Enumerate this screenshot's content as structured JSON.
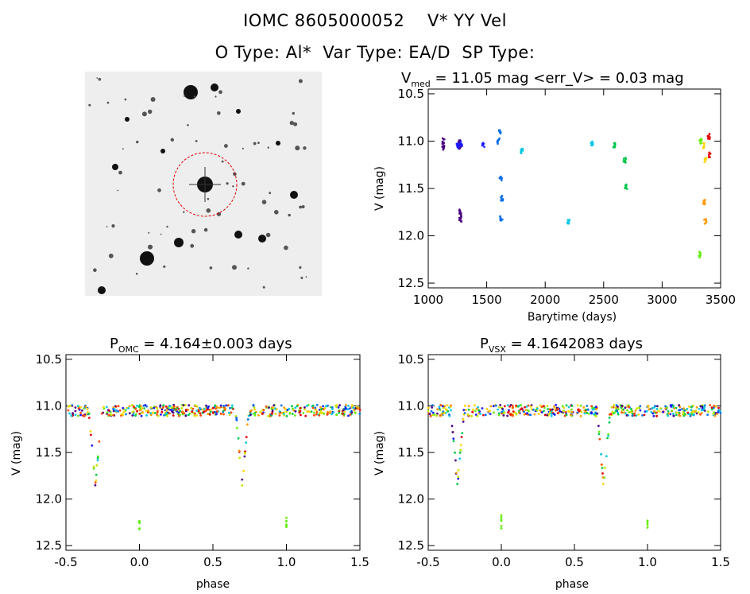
{
  "header": {
    "title": "IOMC 8605000052    V* YY Vel",
    "subtitle": "O Type: Al*  Var Type: EA/D  SP Type:"
  },
  "colors": {
    "series": [
      "#4b0082",
      "#1a1aff",
      "#0a6fe8",
      "#00c8e6",
      "#00c84a",
      "#66ee11",
      "#c8e600",
      "#ffd400",
      "#ff9a00",
      "#ff4a00",
      "#e60000",
      "#202020"
    ],
    "frame": "#000000"
  },
  "chart_data": [
    {
      "type": "scatter",
      "name": "light-curve",
      "title_main": "V",
      "title_sub": "med",
      "title_rest": " = 11.05 mag <err_V> = 0.03 mag",
      "xlabel": "Barytime (days)",
      "ylabel": "V (mag)",
      "xlim": [
        1000,
        3500
      ],
      "ylim": [
        12.55,
        10.45
      ],
      "xticks": [
        "1000",
        "1500",
        "2000",
        "2500",
        "3000",
        "3500"
      ],
      "yticks": [
        "10.5",
        "11.0",
        "11.5",
        "12.0",
        "12.5"
      ],
      "series": [
        {
          "name": "s1",
          "color_index": 0,
          "points": [
            [
              1130,
              11.0
            ],
            [
              1130,
              11.07
            ],
            [
              1270,
              11.02
            ],
            [
              1270,
              11.06
            ],
            [
              1275,
              11.75
            ],
            [
              1275,
              11.82
            ]
          ]
        },
        {
          "name": "s2",
          "color_index": 1,
          "points": [
            [
              1250,
              11.05
            ],
            [
              1280,
              11.03
            ],
            [
              1470,
              11.04
            ]
          ]
        },
        {
          "name": "s3",
          "color_index": 2,
          "points": [
            [
              1600,
              11.0
            ],
            [
              1610,
              10.9
            ],
            [
              1620,
              11.4
            ],
            [
              1625,
              11.82
            ],
            [
              1630,
              11.6
            ]
          ]
        },
        {
          "name": "s4",
          "color_index": 3,
          "points": [
            [
              1800,
              11.1
            ],
            [
              2200,
              11.85
            ],
            [
              2400,
              11.02
            ]
          ]
        },
        {
          "name": "s5",
          "color_index": 4,
          "points": [
            [
              2590,
              11.04
            ],
            [
              2680,
              11.2
            ],
            [
              2690,
              11.48
            ]
          ]
        },
        {
          "name": "s6",
          "color_index": 5,
          "points": [
            [
              3320,
              12.2
            ],
            [
              3330,
              11.0
            ]
          ]
        },
        {
          "name": "s7",
          "color_index": 7,
          "points": [
            [
              3360,
              11.05
            ],
            [
              3370,
              11.2
            ]
          ]
        },
        {
          "name": "s8",
          "color_index": 8,
          "points": [
            [
              3360,
              11.65
            ],
            [
              3370,
              11.85
            ]
          ]
        },
        {
          "name": "s9",
          "color_index": 10,
          "points": [
            [
              3400,
              10.95
            ],
            [
              3405,
              11.15
            ]
          ]
        }
      ]
    },
    {
      "type": "scatter",
      "name": "phase-omc",
      "title_main": "P",
      "title_sub": "OMC",
      "title_rest": " = 4.164±0.003 days",
      "xlabel": "phase",
      "ylabel": "V (mag)",
      "xlim": [
        -0.5,
        1.5
      ],
      "ylim": [
        12.55,
        10.45
      ],
      "xticks": [
        "-0.5",
        "0.0",
        "0.5",
        "1.0",
        "1.5"
      ],
      "yticks": [
        "10.5",
        "11.0",
        "11.5",
        "12.0",
        "12.5"
      ],
      "period_days": 4.164,
      "eclipse_phase": -0.3,
      "eclipse_depth_mag": 11.85,
      "baseline_mag": 11.05,
      "outlier_mag": 12.25
    },
    {
      "type": "scatter",
      "name": "phase-vsx",
      "title_main": "P",
      "title_sub": "VSX",
      "title_rest": " = 4.1642083 days",
      "xlabel": "phase",
      "ylabel": "V (mag)",
      "xlim": [
        -0.5,
        1.5
      ],
      "ylim": [
        12.55,
        10.45
      ],
      "xticks": [
        "-0.5",
        "0.0",
        "0.5",
        "1.0",
        "1.5"
      ],
      "yticks": [
        "10.5",
        "11.0",
        "11.5",
        "12.0",
        "12.5"
      ],
      "period_days": 4.1642083,
      "eclipse_phase": -0.3,
      "eclipse_depth_mag": 11.85,
      "baseline_mag": 11.05,
      "outlier_mag": 12.25
    }
  ]
}
